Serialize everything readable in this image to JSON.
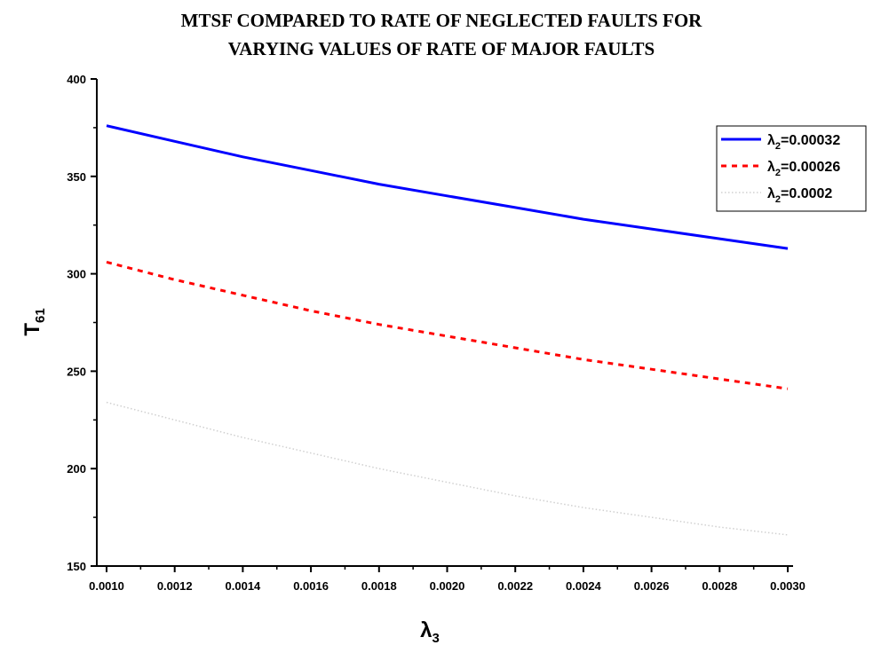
{
  "chart_data": {
    "type": "line",
    "title": [
      "MTSF COMPARED TO RATE OF NEGLECTED FAULTS FOR",
      "VARYING VALUES OF RATE OF MAJOR FAULTS"
    ],
    "xlabel": {
      "main": "λ",
      "sub": "3"
    },
    "ylabel": {
      "main": "T",
      "sub": "61"
    },
    "xlim": [
      0.001,
      0.003
    ],
    "ylim": [
      150,
      400
    ],
    "x_ticks": [
      "0.0010",
      "0.0012",
      "0.0014",
      "0.0016",
      "0.0018",
      "0.0020",
      "0.0022",
      "0.0024",
      "0.0026",
      "0.0028",
      "0.0030"
    ],
    "y_ticks": [
      "150",
      "200",
      "250",
      "300",
      "350",
      "400"
    ],
    "grid": false,
    "legend_position": "top-right",
    "x": [
      0.001,
      0.0012,
      0.0014,
      0.0016,
      0.0018,
      0.002,
      0.0022,
      0.0024,
      0.0026,
      0.0028,
      0.003
    ],
    "series": [
      {
        "legend_main": "λ",
        "legend_sub": "2",
        "legend_value": "=0.00032",
        "color": "#0000ff",
        "style": "solid",
        "values": [
          376,
          368,
          360,
          353,
          346,
          340,
          334,
          328,
          323,
          318,
          313
        ]
      },
      {
        "legend_main": "λ",
        "legend_sub": "2",
        "legend_value": "=0.00026",
        "color": "#ff0000",
        "style": "dash",
        "values": [
          306,
          297,
          289,
          281,
          274,
          268,
          262,
          256,
          251,
          246,
          241
        ]
      },
      {
        "legend_main": "λ",
        "legend_sub": "2",
        "legend_value": "=0.0002",
        "color": "#d0d0d0",
        "style": "dot",
        "values": [
          234,
          225,
          216,
          208,
          200,
          193,
          186,
          180,
          175,
          170,
          166
        ]
      }
    ]
  }
}
